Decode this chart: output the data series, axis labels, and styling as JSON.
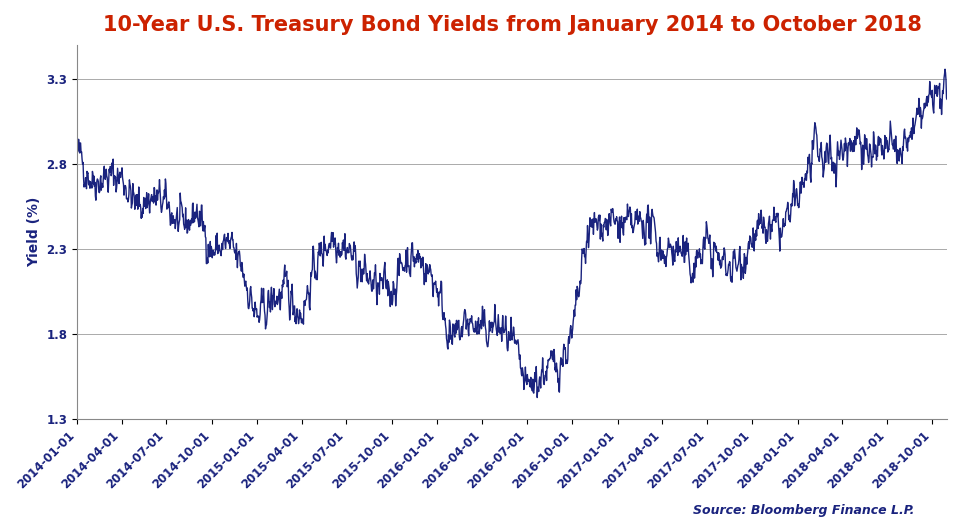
{
  "title": "10-Year U.S. Treasury Bond Yields from January 2014 to October 2018",
  "title_color": "#cc2200",
  "ylabel": "Yield (%)",
  "ylabel_color": "#1a237e",
  "source_text": "Source: Bloomberg Finance L.P.",
  "source_color": "#1a237e",
  "line_color": "#1a237e",
  "tick_color": "#1a237e",
  "ylim": [
    1.3,
    3.5
  ],
  "yticks": [
    1.3,
    1.8,
    2.3,
    2.8,
    3.3
  ],
  "background_color": "#ffffff",
  "grid_color": "#aaaaaa",
  "title_fontsize": 15,
  "label_fontsize": 10,
  "tick_fontsize": 8.5,
  "line_width": 1.0,
  "xtick_dates": [
    "2014-01-01",
    "2014-04-01",
    "2014-07-01",
    "2014-10-01",
    "2015-01-01",
    "2015-04-01",
    "2015-07-01",
    "2015-10-01",
    "2016-01-01",
    "2016-04-01",
    "2016-07-01",
    "2016-10-01",
    "2017-01-01",
    "2017-04-01",
    "2017-07-01",
    "2017-10-01",
    "2018-01-01",
    "2018-04-01",
    "2018-07-01",
    "2018-10-01"
  ],
  "monthly_anchors": {
    "2014-01": 2.87,
    "2014-02": 2.71,
    "2014-03": 2.72,
    "2014-04": 2.73,
    "2014-05": 2.55,
    "2014-06": 2.6,
    "2014-07": 2.56,
    "2014-08": 2.42,
    "2014-09": 2.52,
    "2014-10": 2.28,
    "2014-11": 2.33,
    "2014-12": 2.2,
    "2015-01": 1.88,
    "2015-02": 2.0,
    "2015-03": 2.05,
    "2015-04": 1.92,
    "2015-05": 2.22,
    "2015-06": 2.38,
    "2015-07": 2.32,
    "2015-08": 2.17,
    "2015-09": 2.07,
    "2015-10": 2.07,
    "2015-11": 2.26,
    "2015-12": 2.23,
    "2016-01": 2.09,
    "2016-02": 1.74,
    "2016-03": 1.88,
    "2016-04": 1.81,
    "2016-05": 1.85,
    "2016-06": 1.74,
    "2016-07": 1.46,
    "2016-08": 1.57,
    "2016-09": 1.62,
    "2016-10": 1.77,
    "2016-11": 2.38,
    "2016-12": 2.47,
    "2017-01": 2.44,
    "2017-02": 2.42,
    "2017-03": 2.47,
    "2017-04": 2.29,
    "2017-05": 2.3,
    "2017-06": 2.19,
    "2017-07": 2.34,
    "2017-08": 2.21,
    "2017-09": 2.2,
    "2017-10": 2.38,
    "2017-11": 2.41,
    "2017-12": 2.41,
    "2018-01": 2.58,
    "2018-02": 2.86,
    "2018-03": 2.82,
    "2018-04": 2.87,
    "2018-05": 2.98,
    "2018-06": 2.85,
    "2018-07": 2.89,
    "2018-08": 2.86,
    "2018-09": 3.05,
    "2018-10": 3.2
  }
}
